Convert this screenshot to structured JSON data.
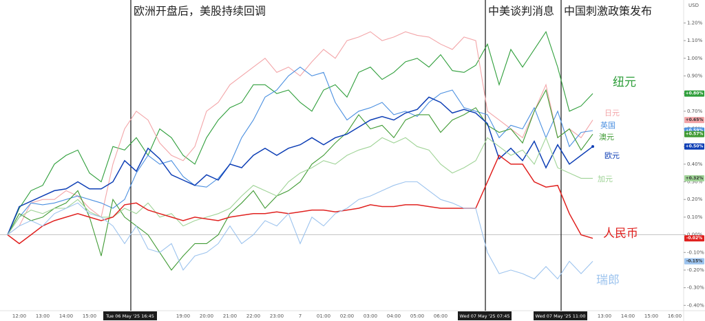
{
  "chart_data": {
    "type": "line",
    "currency": "USD",
    "ylim": [
      -0.43,
      1.33
    ],
    "yticks": [
      {
        "value": -0.4,
        "label": "-0.40%"
      },
      {
        "value": -0.3,
        "label": "-0.30%"
      },
      {
        "value": -0.2,
        "label": "-0.20%"
      },
      {
        "value": -0.1,
        "label": "-0.10%"
      },
      {
        "value": 0,
        "label": "0.00%"
      },
      {
        "value": 0.1,
        "label": "0.10%"
      },
      {
        "value": 0.2,
        "label": "0.20%"
      },
      {
        "value": 0.3,
        "label": "0.30%"
      },
      {
        "value": 0.4,
        "label": "0.40%"
      },
      {
        "value": 0.5,
        "label": "0.50%"
      },
      {
        "value": 0.6,
        "label": "0.60%"
      },
      {
        "value": 0.7,
        "label": "0.70%"
      },
      {
        "value": 0.8,
        "label": "0.80%"
      },
      {
        "value": 0.9,
        "label": "0.90%"
      },
      {
        "value": 1.0,
        "label": "1.00%"
      },
      {
        "value": 1.1,
        "label": "1.10%"
      },
      {
        "value": 1.2,
        "label": "1.20%"
      }
    ],
    "categories": [
      null,
      "12:00",
      null,
      "13:00",
      null,
      "14:00",
      null,
      "15:00",
      null,
      null,
      null,
      null,
      null,
      null,
      null,
      "19:00",
      null,
      "20:00",
      null,
      "21:00",
      null,
      "22:00",
      null,
      "23:00",
      null,
      "7",
      null,
      "01:00",
      null,
      "02:00",
      null,
      "03:00",
      null,
      "04:00",
      null,
      "05:00",
      null,
      "06:00",
      null,
      null,
      null,
      null,
      null,
      null,
      null,
      null,
      null,
      null,
      null,
      null,
      null,
      "13:00",
      null,
      "14:00",
      null,
      "15:00",
      null,
      "16:00"
    ],
    "annotations": [
      {
        "text": "欧洲开盘后，美股持续回调",
        "time_label": "Tue 06 May '25  16:45"
      },
      {
        "text": "中美谈判消息",
        "time_label": "Wed 07 May '25  07:45"
      },
      {
        "text": "中国刺激政策发布",
        "time_label": "Wed 07 May '25  11:00"
      }
    ],
    "series": [
      {
        "name": "纽元",
        "color": "#2e9e3a",
        "values": [
          0,
          0.15,
          0.25,
          0.28,
          0.4,
          0.45,
          0.48,
          0.35,
          0.3,
          0.5,
          0.48,
          0.55,
          0.45,
          0.6,
          0.55,
          0.45,
          0.4,
          0.55,
          0.65,
          0.72,
          0.75,
          0.85,
          0.85,
          0.8,
          0.82,
          0.75,
          0.7,
          0.82,
          0.85,
          0.78,
          0.92,
          0.95,
          0.88,
          0.92,
          0.98,
          1.0,
          0.95,
          1.02,
          0.93,
          0.92,
          0.96,
          1.08,
          0.85,
          1.05,
          0.95,
          1.05,
          1.15,
          0.95,
          0.7,
          0.73,
          0.8,
          null,
          null,
          null,
          null,
          null,
          null,
          null
        ],
        "value_labels": [
          null,
          null,
          null,
          null,
          null,
          null,
          null,
          null,
          null,
          null,
          null,
          null,
          null,
          null,
          null,
          null,
          null,
          null,
          null,
          null,
          null,
          null,
          null,
          null,
          null,
          null,
          null,
          null,
          null,
          null,
          null,
          null,
          null,
          null,
          null,
          null,
          null,
          null,
          null,
          null,
          null,
          null,
          null,
          null,
          null,
          null,
          null,
          null,
          null,
          null,
          "+0.80%",
          null,
          null,
          null,
          null,
          null,
          null,
          null
        ]
      },
      {
        "name": "日元",
        "color": "#f3a5a8",
        "values": [
          0,
          0.05,
          0.18,
          0.2,
          0.2,
          0.25,
          0.22,
          0.15,
          0.1,
          0.4,
          0.6,
          0.7,
          0.65,
          0.52,
          0.45,
          0.42,
          0.5,
          0.7,
          0.75,
          0.85,
          0.9,
          0.95,
          1.0,
          0.92,
          0.95,
          0.9,
          0.98,
          1.05,
          1.0,
          1.1,
          1.12,
          1.15,
          1.1,
          1.12,
          1.15,
          1.13,
          1.12,
          1.08,
          1.05,
          1.12,
          1.1,
          0.7,
          0.65,
          0.6,
          0.55,
          0.7,
          0.85,
          0.55,
          0.6,
          0.55,
          0.65,
          null,
          null,
          null,
          null,
          null,
          null,
          null
        ],
        "value_labels": [
          null,
          null,
          null,
          null,
          null,
          null,
          null,
          null,
          null,
          null,
          null,
          null,
          null,
          null,
          null,
          null,
          null,
          null,
          null,
          null,
          null,
          null,
          null,
          null,
          null,
          null,
          null,
          null,
          null,
          null,
          null,
          null,
          null,
          null,
          null,
          null,
          null,
          null,
          null,
          null,
          null,
          null,
          null,
          null,
          null,
          null,
          null,
          null,
          null,
          null,
          "+0.65%",
          null,
          null,
          null,
          null,
          null,
          null,
          null
        ]
      },
      {
        "name": "英国",
        "color": "#4a8fe0",
        "values": [
          0,
          0.1,
          0.18,
          0.17,
          0.18,
          0.2,
          0.22,
          0.2,
          0.18,
          0.15,
          0.2,
          0.35,
          0.45,
          0.4,
          0.42,
          0.33,
          0.28,
          0.27,
          0.32,
          0.4,
          0.55,
          0.65,
          0.78,
          0.82,
          0.9,
          0.95,
          0.9,
          0.92,
          0.75,
          0.65,
          0.7,
          0.72,
          0.75,
          0.68,
          0.7,
          0.67,
          0.75,
          0.8,
          0.82,
          0.72,
          0.7,
          0.68,
          0.55,
          0.62,
          0.6,
          0.72,
          0.55,
          0.7,
          0.5,
          0.58,
          0.59,
          null,
          null,
          null,
          null,
          null,
          null,
          null
        ],
        "value_labels": [
          null,
          null,
          null,
          null,
          null,
          null,
          null,
          null,
          null,
          null,
          null,
          null,
          null,
          null,
          null,
          null,
          null,
          null,
          null,
          null,
          null,
          null,
          null,
          null,
          null,
          null,
          null,
          null,
          null,
          null,
          null,
          null,
          null,
          null,
          null,
          null,
          null,
          null,
          null,
          null,
          null,
          null,
          null,
          null,
          null,
          null,
          null,
          null,
          null,
          null,
          "+0.59%",
          null,
          null,
          null,
          null,
          null,
          null,
          null
        ]
      },
      {
        "name": "澳元",
        "color": "#3f9a33",
        "values": [
          0,
          0.12,
          0.08,
          0.1,
          0.15,
          0.18,
          0.25,
          0.1,
          -0.12,
          0.2,
          0.1,
          0.05,
          0.0,
          -0.1,
          -0.2,
          -0.12,
          -0.05,
          -0.05,
          0.0,
          0.12,
          0.18,
          0.25,
          0.15,
          0.22,
          0.25,
          0.3,
          0.4,
          0.45,
          0.52,
          0.58,
          0.68,
          0.6,
          0.62,
          0.55,
          0.65,
          0.68,
          0.68,
          0.58,
          0.65,
          0.68,
          0.72,
          0.62,
          0.58,
          0.6,
          0.52,
          0.7,
          0.82,
          0.55,
          0.6,
          0.48,
          0.57,
          null,
          null,
          null,
          null,
          null,
          null,
          null
        ],
        "value_labels": [
          null,
          null,
          null,
          null,
          null,
          null,
          null,
          null,
          null,
          null,
          null,
          null,
          null,
          null,
          null,
          null,
          null,
          null,
          null,
          null,
          null,
          null,
          null,
          null,
          null,
          null,
          null,
          null,
          null,
          null,
          null,
          null,
          null,
          null,
          null,
          null,
          null,
          null,
          null,
          null,
          null,
          null,
          null,
          null,
          null,
          null,
          null,
          null,
          null,
          null,
          "+0.57%",
          null,
          null,
          null,
          null,
          null,
          null,
          null
        ]
      },
      {
        "name": "欧元",
        "color": "#0d3eb5",
        "values": [
          0,
          0.16,
          0.19,
          0.22,
          0.25,
          0.26,
          0.3,
          0.26,
          0.26,
          0.3,
          0.42,
          0.36,
          0.49,
          0.43,
          0.34,
          0.31,
          0.28,
          0.34,
          0.31,
          0.4,
          0.38,
          0.45,
          0.49,
          0.45,
          0.49,
          0.51,
          0.55,
          0.51,
          0.55,
          0.57,
          0.61,
          0.65,
          0.67,
          0.65,
          0.69,
          0.71,
          0.78,
          0.75,
          0.69,
          0.71,
          0.69,
          0.63,
          0.43,
          0.49,
          0.42,
          0.53,
          0.38,
          0.51,
          0.4,
          0.45,
          0.5,
          null,
          null,
          null,
          null,
          null,
          null,
          null
        ],
        "value_labels": [
          null,
          null,
          null,
          null,
          null,
          null,
          null,
          null,
          null,
          null,
          null,
          null,
          null,
          null,
          null,
          null,
          null,
          null,
          null,
          null,
          null,
          null,
          null,
          null,
          null,
          null,
          null,
          null,
          null,
          null,
          null,
          null,
          null,
          null,
          null,
          null,
          null,
          null,
          null,
          null,
          null,
          null,
          null,
          null,
          null,
          null,
          null,
          null,
          null,
          null,
          "+0.50%",
          null,
          null,
          null,
          null,
          null,
          null,
          null
        ]
      },
      {
        "name": "加元",
        "color": "#9fd396",
        "values": [
          0,
          0.1,
          0.14,
          0.12,
          0.15,
          0.15,
          0.2,
          0.13,
          0.1,
          0.1,
          0.15,
          0.12,
          0.18,
          0.1,
          0.12,
          0.05,
          0.08,
          0.1,
          0.12,
          0.15,
          0.22,
          0.28,
          0.25,
          0.22,
          0.3,
          0.35,
          0.38,
          0.42,
          0.4,
          0.45,
          0.48,
          0.5,
          0.55,
          0.52,
          0.55,
          0.5,
          0.48,
          0.4,
          0.35,
          0.38,
          0.42,
          0.55,
          0.5,
          0.45,
          0.48,
          0.4,
          0.55,
          0.38,
          0.35,
          0.32,
          0.32,
          null,
          null,
          null,
          null,
          null,
          null,
          null
        ],
        "value_labels": [
          null,
          null,
          null,
          null,
          null,
          null,
          null,
          null,
          null,
          null,
          null,
          null,
          null,
          null,
          null,
          null,
          null,
          null,
          null,
          null,
          null,
          null,
          null,
          null,
          null,
          null,
          null,
          null,
          null,
          null,
          null,
          null,
          null,
          null,
          null,
          null,
          null,
          null,
          null,
          null,
          null,
          null,
          null,
          null,
          null,
          null,
          null,
          null,
          null,
          null,
          "+0.32%",
          null,
          null,
          null,
          null,
          null,
          null,
          null
        ]
      },
      {
        "name": "人民币",
        "color": "#e0201e",
        "values": [
          0,
          -0.05,
          0.0,
          0.05,
          0.08,
          0.1,
          0.12,
          0.1,
          0.08,
          0.1,
          0.17,
          0.18,
          0.14,
          0.12,
          0.1,
          0.08,
          0.1,
          0.09,
          0.08,
          0.1,
          0.11,
          0.12,
          0.12,
          0.13,
          0.12,
          0.13,
          0.14,
          0.14,
          0.13,
          0.14,
          0.15,
          0.17,
          0.16,
          0.16,
          0.17,
          0.17,
          0.16,
          0.15,
          0.15,
          0.15,
          0.15,
          0.3,
          0.45,
          0.4,
          0.4,
          0.3,
          0.27,
          0.28,
          0.12,
          0.0,
          -0.02,
          null,
          null,
          null,
          null,
          null,
          null,
          null
        ],
        "value_labels": [
          null,
          null,
          null,
          null,
          null,
          null,
          null,
          null,
          null,
          null,
          null,
          null,
          null,
          null,
          null,
          null,
          null,
          null,
          null,
          null,
          null,
          null,
          null,
          null,
          null,
          null,
          null,
          null,
          null,
          null,
          null,
          null,
          null,
          null,
          null,
          null,
          null,
          null,
          null,
          null,
          null,
          null,
          null,
          null,
          null,
          null,
          null,
          null,
          null,
          null,
          "-0.02%",
          null,
          null,
          null,
          null,
          null,
          null,
          null
        ]
      },
      {
        "name": "瑞郎",
        "color": "#9cc3ee",
        "values": [
          0,
          0.05,
          0.08,
          0.05,
          0.12,
          0.15,
          0.18,
          0.12,
          0.1,
          0.05,
          -0.05,
          0.05,
          -0.08,
          -0.1,
          -0.05,
          -0.2,
          -0.12,
          -0.1,
          -0.05,
          0.05,
          -0.05,
          0.0,
          0.08,
          0.05,
          0.12,
          -0.05,
          0.1,
          0.05,
          0.12,
          0.15,
          0.2,
          0.22,
          0.25,
          0.28,
          0.3,
          0.3,
          0.25,
          0.2,
          0.18,
          0.15,
          0.15,
          -0.1,
          -0.22,
          -0.2,
          -0.22,
          -0.25,
          -0.18,
          -0.25,
          -0.15,
          -0.22,
          -0.15,
          null,
          null,
          null,
          null,
          null,
          null,
          null
        ],
        "value_labels": [
          null,
          null,
          null,
          null,
          null,
          null,
          null,
          null,
          null,
          null,
          null,
          null,
          null,
          null,
          null,
          null,
          null,
          null,
          null,
          null,
          null,
          null,
          null,
          null,
          null,
          null,
          null,
          null,
          null,
          null,
          null,
          null,
          null,
          null,
          null,
          null,
          null,
          null,
          null,
          null,
          null,
          null,
          null,
          null,
          null,
          null,
          null,
          null,
          null,
          null,
          "-0.15%",
          null,
          null,
          null,
          null,
          null,
          null,
          null
        ]
      }
    ]
  }
}
